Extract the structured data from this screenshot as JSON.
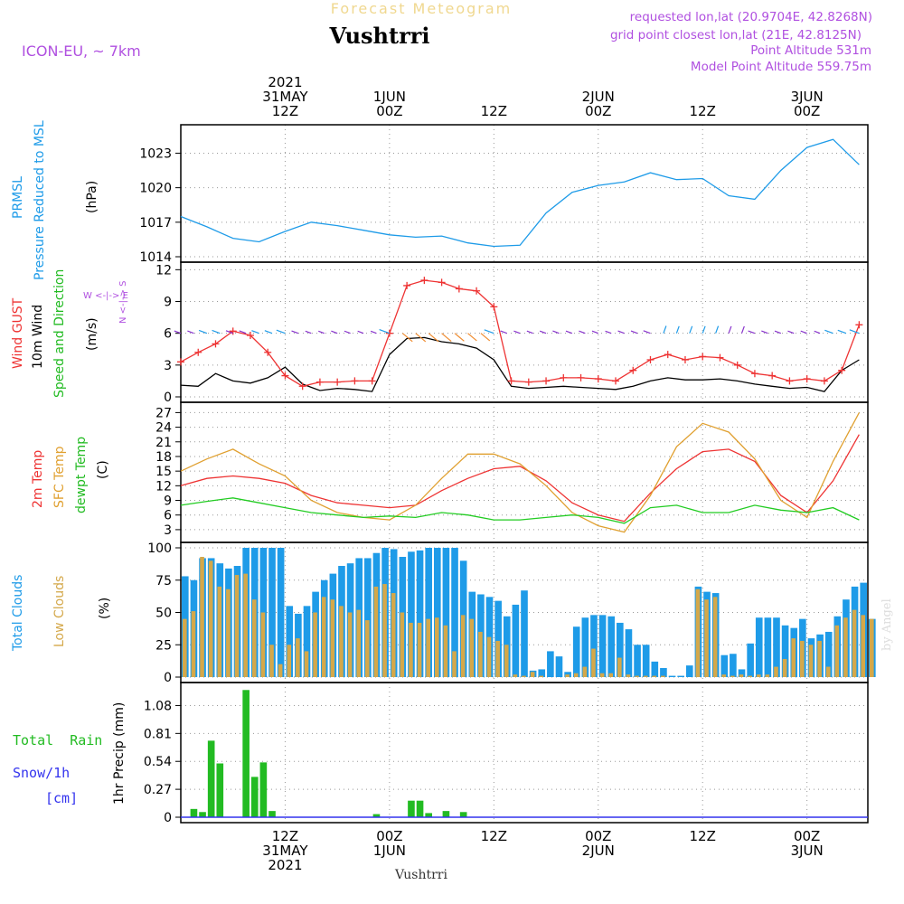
{
  "header": {
    "subtitle": "Forecast Meteogram",
    "station": "Vushtrri",
    "model": "ICON-EU, ~ 7km",
    "requested": "requested lon,lat (20.9704E, 42.8268N)",
    "gridpoint": "grid point closest lon,lat (21E, 42.8125N)",
    "altitude": "Point Altitude 531m",
    "model_altitude": "Model Point Altitude 559.75m",
    "footer": "Vushtrri",
    "watermark": "by Angel"
  },
  "time_axis": {
    "top_labels": [
      {
        "t": 12,
        "lines": [
          "2021",
          "31MAY",
          "12Z"
        ]
      },
      {
        "t": 24,
        "lines": [
          "1JUN",
          "00Z"
        ]
      },
      {
        "t": 36,
        "lines": [
          "12Z"
        ]
      },
      {
        "t": 48,
        "lines": [
          "2JUN",
          "00Z"
        ]
      },
      {
        "t": 60,
        "lines": [
          "12Z"
        ]
      },
      {
        "t": 72,
        "lines": [
          "3JUN",
          "00Z"
        ]
      }
    ],
    "bottom_labels": [
      {
        "t": 12,
        "lines": [
          "12Z",
          "31MAY",
          "2021"
        ]
      },
      {
        "t": 24,
        "lines": [
          "00Z",
          "1JUN"
        ]
      },
      {
        "t": 36,
        "lines": [
          "12Z"
        ]
      },
      {
        "t": 48,
        "lines": [
          "00Z",
          "2JUN"
        ]
      },
      {
        "t": 60,
        "lines": [
          "12Z"
        ]
      },
      {
        "t": 72,
        "lines": [
          "00Z",
          "3JUN"
        ]
      }
    ]
  },
  "panel_labels": {
    "pressure": {
      "names": [
        "PRMSL",
        "Pressure Reduced to MSL"
      ],
      "unit": "(hPa)",
      "color": "#1e9be8"
    },
    "wind": {
      "gust": "Wind GUST",
      "wind10": "10m Wind",
      "dir": "Speed and Direction",
      "unit": "(m/s)",
      "compass_ns": "N <-|-> S",
      "compass_w": "W <-|-> E"
    },
    "temp": {
      "t2m": "2m Temp",
      "sfc": "SFC Temp",
      "dew": "dewpt Temp",
      "unit": "(C)"
    },
    "cloud": {
      "total": "Total Clouds",
      "low": "Low Clouds",
      "unit": "(%)"
    },
    "precip": {
      "rain": "Total  Rain",
      "snow": "Snow/1h",
      "snow_unit": "[cm]",
      "ylabel": "1hr Precip (mm)"
    }
  },
  "colors": {
    "pressure": "#1e9be8",
    "gust": "#ee3333",
    "wind": "#000000",
    "t2m": "#ee3333",
    "sfc": "#e0a030",
    "dew": "#22cc22",
    "total_cloud": "#1e9be8",
    "low_cloud": "#d4a84a",
    "rain": "#22bb22",
    "snow": "#3333ee",
    "header_purple": "#b050e0"
  },
  "chart_data": [
    {
      "type": "line",
      "panel": "pressure",
      "ylabel": "(hPa)",
      "yticks": [
        1014,
        1017,
        1020,
        1023
      ],
      "ylim": [
        1014,
        1025
      ],
      "x": [
        0,
        3,
        6,
        9,
        12,
        15,
        18,
        21,
        24,
        27,
        30,
        33,
        36,
        39,
        42,
        45,
        48,
        51,
        54,
        57,
        60,
        63,
        66,
        69,
        72,
        75,
        78
      ],
      "values": [
        1017.5,
        1016.6,
        1015.6,
        1015.3,
        1016.2,
        1017.0,
        1016.7,
        1016.3,
        1015.9,
        1015.7,
        1015.8,
        1015.2,
        1014.9,
        1015.0,
        1017.8,
        1019.6,
        1020.2,
        1020.5,
        1021.3,
        1020.7,
        1020.8,
        1019.3,
        1019.0,
        1021.5,
        1023.5,
        1024.2,
        1022.0
      ]
    },
    {
      "type": "line",
      "panel": "wind",
      "ylabel": "(m/s)",
      "yticks": [
        0,
        3,
        6,
        9,
        12
      ],
      "ylim": [
        0,
        12.2
      ],
      "series": [
        {
          "name": "Wind GUST",
          "x": [
            0,
            2,
            4,
            6,
            8,
            10,
            12,
            14,
            16,
            18,
            20,
            22,
            24,
            26,
            28,
            30,
            32,
            34,
            36,
            38,
            40,
            42,
            44,
            46,
            48,
            50,
            52,
            54,
            56,
            58,
            60,
            62,
            64,
            66,
            68,
            70,
            72,
            74,
            76,
            78
          ],
          "values": [
            3.3,
            4.2,
            5.0,
            6.2,
            5.8,
            4.2,
            2.0,
            1.0,
            1.4,
            1.4,
            1.5,
            1.5,
            6.0,
            10.5,
            11.0,
            10.8,
            10.2,
            10.0,
            8.5,
            1.5,
            1.4,
            1.5,
            1.8,
            1.8,
            1.7,
            1.5,
            2.5,
            3.5,
            4.0,
            3.5,
            3.8,
            3.7,
            3.0,
            2.2,
            2.0,
            1.5,
            1.7,
            1.5,
            2.5,
            6.8
          ]
        },
        {
          "name": "10m Wind",
          "x": [
            0,
            2,
            4,
            6,
            8,
            10,
            12,
            14,
            16,
            18,
            20,
            22,
            24,
            26,
            28,
            30,
            32,
            34,
            36,
            38,
            40,
            42,
            44,
            46,
            48,
            50,
            52,
            54,
            56,
            58,
            60,
            62,
            64,
            66,
            68,
            70,
            72,
            74,
            76,
            78
          ],
          "values": [
            1.1,
            1.0,
            2.2,
            1.5,
            1.3,
            1.8,
            2.8,
            1.2,
            0.6,
            0.8,
            0.7,
            0.5,
            4.0,
            5.5,
            5.6,
            5.2,
            5.0,
            4.6,
            3.5,
            1.0,
            0.8,
            0.9,
            1.0,
            0.9,
            0.8,
            0.7,
            1.0,
            1.5,
            1.8,
            1.6,
            1.6,
            1.7,
            1.5,
            1.2,
            1.0,
            0.8,
            0.9,
            0.5,
            2.5,
            3.5
          ]
        }
      ]
    },
    {
      "type": "line",
      "panel": "temp",
      "ylabel": "(C)",
      "yticks": [
        3,
        6,
        9,
        12,
        15,
        18,
        21,
        24,
        27
      ],
      "ylim": [
        1.5,
        28
      ],
      "series": [
        {
          "name": "2m Temp",
          "x": [
            0,
            3,
            6,
            9,
            12,
            15,
            18,
            21,
            24,
            27,
            30,
            33,
            36,
            39,
            42,
            45,
            48,
            51,
            54,
            57,
            60,
            63,
            66,
            69,
            72,
            75,
            78
          ],
          "values": [
            12.0,
            13.5,
            14.0,
            13.5,
            12.5,
            10.0,
            8.5,
            8.0,
            7.5,
            8.0,
            11.0,
            13.5,
            15.5,
            16.0,
            13.0,
            8.5,
            6.0,
            4.7,
            10.5,
            15.5,
            19.0,
            19.5,
            17.0,
            10.0,
            6.5,
            13.0,
            22.5
          ]
        },
        {
          "name": "SFC Temp",
          "x": [
            0,
            3,
            6,
            9,
            12,
            15,
            18,
            21,
            24,
            27,
            30,
            33,
            36,
            39,
            42,
            45,
            48,
            51,
            54,
            57,
            60,
            63,
            66,
            69,
            72,
            75,
            78
          ],
          "values": [
            15.0,
            17.5,
            19.5,
            16.5,
            14.0,
            9.0,
            6.5,
            5.5,
            5.0,
            8.0,
            13.5,
            18.5,
            18.5,
            16.5,
            12.0,
            6.5,
            3.8,
            2.5,
            10.0,
            20.0,
            24.8,
            23.0,
            17.5,
            9.0,
            5.5,
            17.0,
            27.0
          ]
        },
        {
          "name": "dewpt Temp",
          "x": [
            0,
            3,
            6,
            9,
            12,
            15,
            18,
            21,
            24,
            27,
            30,
            33,
            36,
            39,
            42,
            45,
            48,
            51,
            54,
            57,
            60,
            63,
            66,
            69,
            72,
            75,
            78
          ],
          "values": [
            8.0,
            8.8,
            9.5,
            8.5,
            7.5,
            6.5,
            6.0,
            5.5,
            5.8,
            5.5,
            6.5,
            6.0,
            5.0,
            5.0,
            5.5,
            6.0,
            5.5,
            4.3,
            7.5,
            8.0,
            6.5,
            6.5,
            8.0,
            7.0,
            6.5,
            7.5,
            5.0
          ]
        }
      ]
    },
    {
      "type": "bar",
      "panel": "cloud",
      "ylabel": "(%)",
      "yticks": [
        0,
        25,
        50,
        75,
        100
      ],
      "ylim": [
        0,
        100
      ],
      "series": [
        {
          "name": "Total Clouds",
          "x": [
            0,
            1,
            2,
            3,
            4,
            5,
            6,
            7,
            8,
            9,
            10,
            11,
            12,
            13,
            14,
            15,
            16,
            17,
            18,
            19,
            20,
            21,
            22,
            23,
            24,
            25,
            26,
            27,
            28,
            29,
            30,
            31,
            32,
            33,
            34,
            35,
            36,
            37,
            38,
            39,
            40,
            41,
            42,
            43,
            44,
            45,
            46,
            47,
            48,
            49,
            50,
            51,
            52,
            53,
            54,
            55,
            56,
            57,
            58,
            59,
            60,
            61,
            62,
            63,
            64,
            65,
            66,
            67,
            68,
            69,
            70,
            71,
            72,
            73,
            74,
            75,
            76,
            77,
            78,
            79
          ],
          "values": [
            78,
            75,
            92,
            92,
            88,
            84,
            86,
            100,
            100,
            100,
            100,
            100,
            55,
            49,
            55,
            66,
            75,
            80,
            86,
            88,
            92,
            92,
            96,
            100,
            99,
            93,
            97,
            98,
            100,
            100,
            100,
            100,
            90,
            66,
            64,
            62,
            59,
            47,
            56,
            67,
            5,
            6,
            20,
            16,
            4,
            39,
            46,
            48,
            48,
            47,
            42,
            37,
            25,
            25,
            12,
            7,
            1,
            1,
            9,
            70,
            66,
            65,
            17,
            18,
            6,
            26,
            46,
            46,
            46,
            40,
            38,
            45,
            30,
            33,
            35,
            47,
            60,
            70,
            73,
            45
          ]
        },
        {
          "name": "Low Clouds",
          "x": [
            0,
            1,
            2,
            3,
            4,
            5,
            6,
            7,
            8,
            9,
            10,
            11,
            12,
            13,
            14,
            15,
            16,
            17,
            18,
            19,
            20,
            21,
            22,
            23,
            24,
            25,
            26,
            27,
            28,
            29,
            30,
            31,
            32,
            33,
            34,
            35,
            36,
            37,
            38,
            39,
            40,
            41,
            42,
            43,
            44,
            45,
            46,
            47,
            48,
            49,
            50,
            51,
            52,
            53,
            54,
            55,
            56,
            57,
            58,
            59,
            60,
            61,
            62,
            63,
            64,
            65,
            66,
            67,
            68,
            69,
            70,
            71,
            72,
            73,
            74,
            75,
            76,
            77,
            78,
            79
          ],
          "values": [
            45,
            51,
            93,
            90,
            70,
            68,
            79,
            80,
            60,
            50,
            25,
            10,
            25,
            30,
            20,
            50,
            62,
            60,
            55,
            50,
            52,
            44,
            70,
            72,
            65,
            50,
            42,
            42,
            45,
            46,
            40,
            20,
            48,
            45,
            35,
            31,
            28,
            25,
            2,
            1,
            4,
            1,
            0,
            0,
            2,
            3,
            8,
            22,
            3,
            3,
            15,
            2,
            1,
            1,
            1,
            1,
            0,
            0,
            0,
            68,
            60,
            62,
            2,
            1,
            2,
            1,
            2,
            2,
            8,
            14,
            30,
            28,
            25,
            28,
            8,
            40,
            46,
            52,
            48,
            45
          ]
        }
      ]
    },
    {
      "type": "bar",
      "panel": "precip",
      "ylabel": "1hr Precip (mm)",
      "yticks": [
        0,
        0.27,
        0.54,
        0.81,
        1.08
      ],
      "ylim": [
        0,
        1.25
      ],
      "series": [
        {
          "name": "Total Rain",
          "x": [
            1,
            2,
            3,
            4,
            5,
            6,
            7,
            8,
            9,
            10,
            11,
            12,
            13,
            14,
            15,
            16,
            17,
            18,
            19,
            20,
            21,
            22,
            23,
            24,
            25,
            26,
            27,
            28,
            29,
            30,
            31,
            32,
            33,
            34,
            35,
            36,
            37,
            38,
            39,
            40
          ],
          "values": [
            0.08,
            0.05,
            0.74,
            0.52,
            0,
            0,
            1.23,
            0.39,
            0.53,
            0.06,
            0,
            0,
            0,
            0,
            0,
            0,
            0,
            0,
            0,
            0,
            0,
            0.03,
            0,
            0,
            0,
            0.16,
            0.16,
            0.04,
            0,
            0.06,
            0,
            0.05,
            0,
            0,
            0,
            0,
            0,
            0,
            0,
            0
          ]
        }
      ]
    }
  ]
}
